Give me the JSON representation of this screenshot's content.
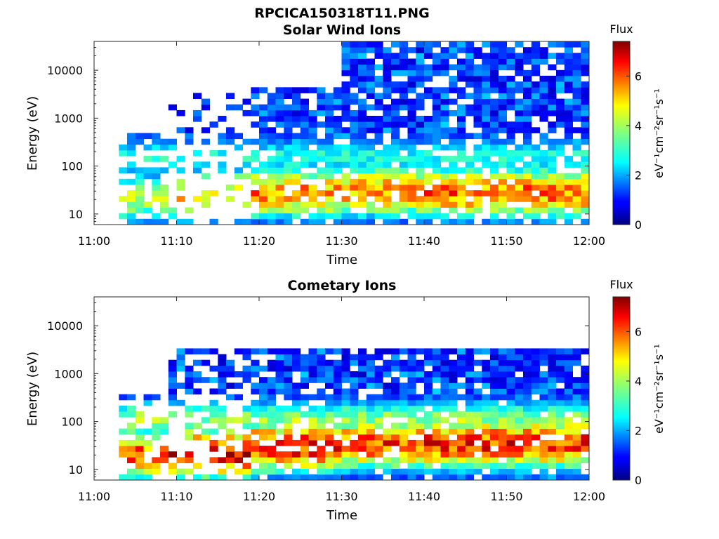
{
  "figure_title": "RPCICA150318T11.PNG",
  "chart_data": [
    {
      "type": "heatmap",
      "title": "Solar Wind Ions",
      "xlabel": "Time",
      "ylabel": "Energy (eV)",
      "x_ticks": [
        "11:00",
        "11:10",
        "11:20",
        "11:30",
        "11:40",
        "11:50",
        "12:00"
      ],
      "x_range": [
        "11:00",
        "12:00"
      ],
      "y_scale": "log",
      "y_ticks": [
        10,
        100,
        1000,
        10000
      ],
      "y_tick_labels": [
        "10",
        "100",
        "1000",
        "10000"
      ],
      "y_range": [
        6,
        40000
      ],
      "colorbar": {
        "label": "eV⁻¹cm⁻²sr⁻¹s⁻¹",
        "title": "Flux",
        "range": [
          0,
          7.4
        ],
        "ticks": [
          0,
          2,
          4,
          6
        ],
        "colormap": "jet"
      },
      "bands": [
        {
          "from": 3,
          "to": 9,
          "lo": 6,
          "hi": 500,
          "peak_energy": 22,
          "peak_flux": 4.2,
          "fill": 0.55
        },
        {
          "from": 9,
          "to": 19,
          "lo": 6,
          "hi": 3000,
          "peak_energy": 25,
          "peak_flux": 5.2,
          "fill": 0.35
        },
        {
          "from": 19,
          "to": 30,
          "lo": 6,
          "hi": 4000,
          "peak_energy": 28,
          "peak_flux": 5.6,
          "fill": 0.8
        },
        {
          "from": 30,
          "to": 40,
          "lo": 6,
          "hi": 40000,
          "peak_energy": 30,
          "peak_flux": 5.6,
          "fill": 0.85
        },
        {
          "from": 40,
          "to": 60,
          "lo": 6,
          "hi": 40000,
          "peak_energy": 28,
          "peak_flux": 5.8,
          "fill": 0.85
        }
      ],
      "secondary_peak": {
        "energy": 150,
        "flux": 3.0
      }
    },
    {
      "type": "heatmap",
      "title": "Cometary Ions",
      "xlabel": "Time",
      "ylabel": "Energy (eV)",
      "x_ticks": [
        "11:00",
        "11:10",
        "11:20",
        "11:30",
        "11:40",
        "11:50",
        "12:00"
      ],
      "x_range": [
        "11:00",
        "12:00"
      ],
      "y_scale": "log",
      "y_ticks": [
        10,
        100,
        1000,
        10000
      ],
      "y_tick_labels": [
        "10",
        "100",
        "1000",
        "10000"
      ],
      "y_range": [
        6,
        40000
      ],
      "colorbar": {
        "label": "eV⁻¹cm⁻²sr⁻¹s⁻¹",
        "title": "Flux",
        "range": [
          0,
          7.4
        ],
        "ticks": [
          0,
          2,
          4,
          6
        ],
        "colormap": "jet"
      },
      "bands": [
        {
          "from": 3,
          "to": 9,
          "lo": 6,
          "hi": 400,
          "peak_energy": 20,
          "peak_flux": 6.0,
          "fill": 0.6
        },
        {
          "from": 9,
          "to": 19,
          "lo": 6,
          "hi": 3000,
          "peak_energy": 22,
          "peak_flux": 6.8,
          "fill": 0.45
        },
        {
          "from": 19,
          "to": 30,
          "lo": 6,
          "hi": 3000,
          "peak_energy": 30,
          "peak_flux": 6.5,
          "fill": 0.8
        },
        {
          "from": 30,
          "to": 40,
          "lo": 6,
          "hi": 3000,
          "peak_energy": 35,
          "peak_flux": 6.2,
          "fill": 0.9
        },
        {
          "from": 40,
          "to": 60,
          "lo": 6,
          "hi": 3000,
          "peak_energy": 35,
          "peak_flux": 6.3,
          "fill": 0.9
        }
      ],
      "secondary_peak": {
        "energy": 100,
        "flux": 4.0
      }
    }
  ]
}
